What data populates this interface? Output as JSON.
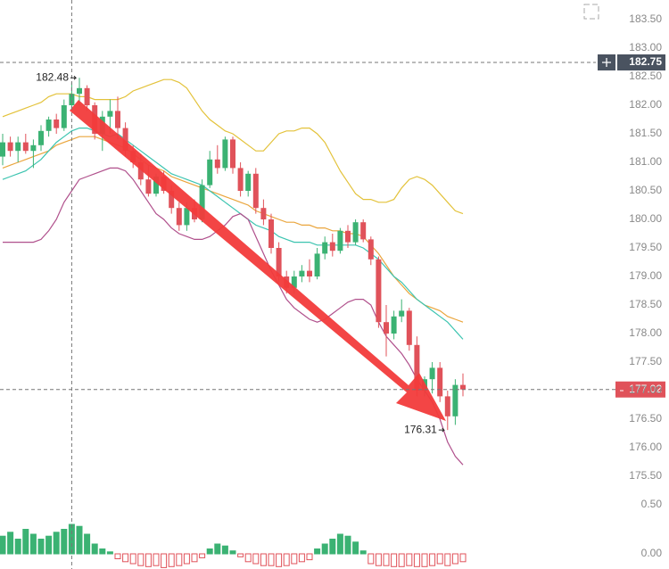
{
  "chart_data": {
    "type": "candlestick",
    "categories": [
      null,
      null,
      null,
      null,
      null,
      null,
      null,
      null,
      null,
      null,
      null,
      null,
      null,
      null,
      null,
      null,
      null,
      null,
      null,
      null,
      null,
      null,
      null,
      null,
      null,
      null,
      null,
      null,
      null,
      null,
      null,
      null,
      null,
      null,
      null,
      null,
      null,
      null,
      null,
      null,
      null,
      null,
      null,
      null,
      null,
      null,
      null,
      null,
      null,
      null,
      null,
      null,
      null,
      null,
      null,
      null,
      null,
      null,
      null,
      null,
      null
    ],
    "candles": {
      "up_color": "#3bb273",
      "down_color": "#e0525a",
      "open": [
        181.1,
        181.35,
        181.2,
        181.35,
        181.2,
        181.3,
        181.55,
        181.75,
        181.6,
        182.0,
        182.2,
        182.3,
        182.0,
        181.5,
        181.8,
        181.9,
        181.6,
        181.2,
        181.0,
        180.7,
        180.45,
        180.75,
        180.5,
        180.2,
        179.9,
        180.2,
        180.0,
        180.6,
        181.05,
        180.9,
        181.4,
        180.9,
        180.5,
        180.8,
        180.2,
        180.0,
        179.5,
        179.0,
        178.8,
        179.0,
        179.1,
        179.0,
        179.4,
        179.6,
        179.45,
        179.8,
        179.6,
        179.95,
        179.65,
        179.3,
        178.2,
        178.0,
        178.3,
        178.4,
        177.8,
        177.0,
        177.2,
        177.4,
        176.9,
        176.55,
        177.1
      ],
      "high": [
        181.5,
        181.45,
        181.45,
        181.5,
        181.4,
        181.65,
        181.8,
        181.85,
        182.1,
        182.4,
        182.48,
        182.35,
        182.05,
        181.9,
        182.1,
        182.15,
        181.7,
        181.3,
        181.15,
        180.95,
        180.8,
        180.85,
        180.6,
        180.3,
        180.3,
        180.35,
        180.7,
        181.2,
        181.3,
        181.45,
        181.45,
        181.0,
        180.85,
        180.9,
        180.35,
        180.1,
        179.6,
        179.1,
        179.1,
        179.2,
        179.3,
        179.5,
        179.7,
        179.75,
        179.85,
        179.9,
        180.0,
        180.0,
        179.7,
        179.35,
        178.5,
        178.4,
        178.6,
        178.45,
        177.95,
        177.25,
        177.5,
        177.5,
        177.0,
        177.2,
        177.3
      ],
      "low": [
        180.95,
        181.1,
        181.0,
        181.15,
        180.9,
        181.2,
        181.45,
        181.5,
        181.55,
        181.95,
        182.0,
        181.9,
        181.4,
        181.2,
        181.5,
        181.4,
        181.1,
        180.9,
        180.6,
        180.4,
        180.4,
        180.45,
        180.1,
        179.8,
        179.8,
        179.95,
        179.95,
        180.55,
        180.8,
        180.85,
        180.8,
        180.4,
        180.4,
        180.1,
        179.9,
        179.4,
        178.9,
        178.7,
        178.7,
        178.9,
        178.9,
        178.95,
        179.3,
        179.35,
        179.4,
        179.5,
        179.55,
        179.6,
        179.2,
        178.1,
        177.6,
        177.9,
        178.2,
        177.7,
        176.9,
        176.9,
        176.95,
        176.8,
        176.31,
        176.4,
        176.9
      ],
      "close": [
        181.35,
        181.2,
        181.35,
        181.2,
        181.3,
        181.55,
        181.75,
        181.6,
        182.0,
        182.2,
        182.3,
        182.0,
        181.5,
        181.8,
        181.9,
        181.6,
        181.2,
        181.0,
        180.7,
        180.45,
        180.75,
        180.5,
        180.2,
        179.9,
        180.2,
        180.0,
        180.6,
        181.05,
        180.9,
        181.4,
        180.9,
        180.5,
        180.8,
        180.2,
        180.0,
        179.5,
        179.0,
        178.8,
        179.0,
        179.1,
        179.0,
        179.4,
        179.6,
        179.45,
        179.8,
        179.6,
        179.95,
        179.65,
        179.3,
        178.2,
        178.0,
        178.3,
        178.4,
        177.8,
        177.0,
        177.2,
        177.4,
        176.9,
        176.55,
        177.1,
        177.02
      ]
    },
    "overlays": [
      {
        "color": "#e3c23a",
        "values": [
          181.8,
          181.85,
          181.9,
          181.95,
          182.0,
          182.05,
          182.15,
          182.2,
          182.2,
          182.2,
          182.15,
          182.15,
          182.1,
          182.1,
          182.1,
          182.1,
          182.15,
          182.25,
          182.3,
          182.35,
          182.4,
          182.45,
          182.45,
          182.4,
          182.3,
          182.1,
          181.9,
          181.75,
          181.65,
          181.55,
          181.5,
          181.4,
          181.3,
          181.2,
          181.2,
          181.35,
          181.5,
          181.55,
          181.55,
          181.6,
          181.6,
          181.5,
          181.35,
          181.1,
          180.85,
          180.65,
          180.45,
          180.35,
          180.35,
          180.3,
          180.3,
          180.35,
          180.55,
          180.7,
          180.75,
          180.7,
          180.6,
          180.45,
          180.3,
          180.15,
          180.1
        ]
      },
      {
        "color": "#eaa53c",
        "values": [
          180.9,
          180.95,
          181.0,
          181.05,
          181.1,
          181.15,
          181.2,
          181.3,
          181.35,
          181.4,
          181.45,
          181.45,
          181.45,
          181.4,
          181.35,
          181.3,
          181.25,
          181.15,
          181.05,
          180.95,
          180.9,
          180.85,
          180.75,
          180.7,
          180.65,
          180.6,
          180.55,
          180.5,
          180.45,
          180.4,
          180.35,
          180.3,
          180.25,
          180.15,
          180.1,
          180.05,
          180.0,
          179.95,
          179.95,
          179.9,
          179.9,
          179.85,
          179.85,
          179.8,
          179.8,
          179.75,
          179.75,
          179.7,
          179.55,
          179.4,
          179.2,
          179.0,
          178.85,
          178.7,
          178.6,
          178.5,
          178.45,
          178.4,
          178.3,
          178.25,
          178.2
        ]
      },
      {
        "color": "#3cc4b0",
        "values": [
          180.7,
          180.75,
          180.8,
          180.85,
          180.95,
          181.05,
          181.2,
          181.35,
          181.45,
          181.55,
          181.6,
          181.6,
          181.55,
          181.5,
          181.45,
          181.5,
          181.4,
          181.3,
          181.2,
          181.1,
          181.0,
          180.9,
          180.8,
          180.75,
          180.7,
          180.65,
          180.6,
          180.5,
          180.4,
          180.3,
          180.2,
          180.1,
          180.0,
          179.9,
          179.85,
          179.8,
          179.7,
          179.65,
          179.6,
          179.6,
          179.6,
          179.55,
          179.55,
          179.55,
          179.55,
          179.55,
          179.55,
          179.5,
          179.4,
          179.3,
          179.15,
          179.0,
          178.9,
          178.75,
          178.6,
          178.5,
          178.4,
          178.3,
          178.2,
          178.05,
          177.9
        ]
      },
      {
        "color": "#b0508c",
        "values": [
          179.6,
          179.6,
          179.6,
          179.6,
          179.6,
          179.65,
          179.8,
          180.0,
          180.3,
          180.5,
          180.7,
          180.75,
          180.8,
          180.85,
          180.9,
          180.9,
          180.85,
          180.7,
          180.5,
          180.3,
          180.1,
          180.0,
          179.85,
          179.75,
          179.7,
          179.65,
          179.65,
          179.7,
          179.8,
          179.9,
          180.05,
          180.1,
          180.0,
          179.7,
          179.4,
          179.1,
          178.85,
          178.6,
          178.45,
          178.35,
          178.25,
          178.2,
          178.25,
          178.35,
          178.45,
          178.55,
          178.6,
          178.6,
          178.5,
          178.2,
          177.95,
          177.8,
          177.65,
          177.45,
          177.2,
          177.0,
          176.8,
          176.5,
          176.1,
          175.85,
          175.7
        ]
      }
    ],
    "ylim": [
      175.25,
      183.75
    ],
    "yticks": [
      {
        "value": 183.5,
        "label": "183.50"
      },
      {
        "value": 183,
        "label": "183.00"
      },
      {
        "value": 182.5,
        "label": "182.50"
      },
      {
        "value": 182,
        "label": "182.00"
      },
      {
        "value": 181.5,
        "label": "181.50"
      },
      {
        "value": 181,
        "label": "181.00"
      },
      {
        "value": 180.5,
        "label": "180.50"
      },
      {
        "value": 180,
        "label": "180.00"
      },
      {
        "value": 179.5,
        "label": "179.50"
      },
      {
        "value": 179,
        "label": "179.00"
      },
      {
        "value": 178.5,
        "label": "178.50"
      },
      {
        "value": 178,
        "label": "178.00"
      },
      {
        "value": 177.5,
        "label": "177.50"
      },
      {
        "value": 177,
        "label": "177.00"
      },
      {
        "value": 176.5,
        "label": "176.50"
      },
      {
        "value": 176,
        "label": "176.00"
      },
      {
        "value": 175.5,
        "label": "175.50"
      }
    ],
    "crosshair": {
      "value": 182.75,
      "label": "182.75"
    },
    "last_price": {
      "value": 177.02,
      "label": "177.02"
    },
    "high_marker": {
      "value": 182.48,
      "label": "182.48"
    },
    "low_marker": {
      "value": 176.31,
      "label": "176.31"
    },
    "histogram": {
      "up_color": "#3bb273",
      "down_color": "#e0525a",
      "values": [
        0.18,
        0.22,
        0.15,
        0.25,
        0.2,
        0.15,
        0.18,
        0.22,
        0.25,
        0.3,
        0.28,
        0.2,
        0.1,
        0.05,
        0.02,
        -0.05,
        -0.08,
        -0.1,
        -0.12,
        -0.13,
        -0.12,
        -0.14,
        -0.13,
        -0.12,
        -0.1,
        -0.08,
        -0.04,
        0.05,
        0.1,
        0.08,
        0.03,
        -0.03,
        -0.08,
        -0.1,
        -0.12,
        -0.12,
        -0.13,
        -0.12,
        -0.1,
        -0.08,
        -0.06,
        0.05,
        0.1,
        0.15,
        0.2,
        0.18,
        0.12,
        0.03,
        -0.1,
        -0.12,
        -0.12,
        -0.13,
        -0.13,
        -0.12,
        -0.13,
        -0.13,
        -0.12,
        -0.1,
        -0.12,
        -0.1,
        -0.08
      ],
      "ylim": [
        -0.15,
        0.6
      ],
      "yticks": [
        {
          "value": 0.5,
          "label": "0.50"
        },
        {
          "value": 0,
          "label": "0.00"
        }
      ]
    }
  }
}
